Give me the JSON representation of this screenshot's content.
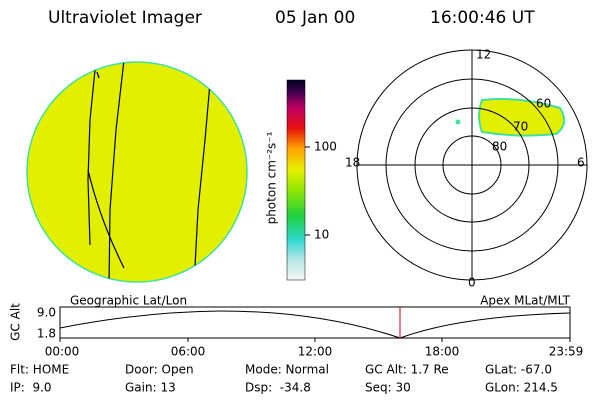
{
  "header": {
    "instrument": "Ultraviolet Imager",
    "date": "05 Jan 00",
    "time": "16:00:46 UT"
  },
  "colorbar": {
    "unit": "photon cm⁻²s⁻¹",
    "labels": [
      "100",
      "10"
    ]
  },
  "polar": {
    "labels": [
      "12",
      "18",
      "6",
      "0",
      "60",
      "70",
      "80"
    ]
  },
  "timeline": {
    "axis_label": "GC Alt",
    "left_title": "Geographic Lat/Lon",
    "right_title": "Apex MLat/MLT",
    "y_labels": [
      "9.0",
      "1.8"
    ],
    "x_labels": [
      "00:00",
      "06:00",
      "12:00",
      "18:00",
      "23:59"
    ]
  },
  "info": {
    "rows": [
      [
        "Flt: HOME",
        "Door: Open",
        "Mode: Normal",
        "GC Alt: 1.7 Re",
        "GLat: -67.0"
      ],
      [
        "IP:  9.0",
        "Gain: 13",
        "Dsp:  -34.8",
        "Seq: 30",
        "GLon: 214.5"
      ]
    ]
  }
}
